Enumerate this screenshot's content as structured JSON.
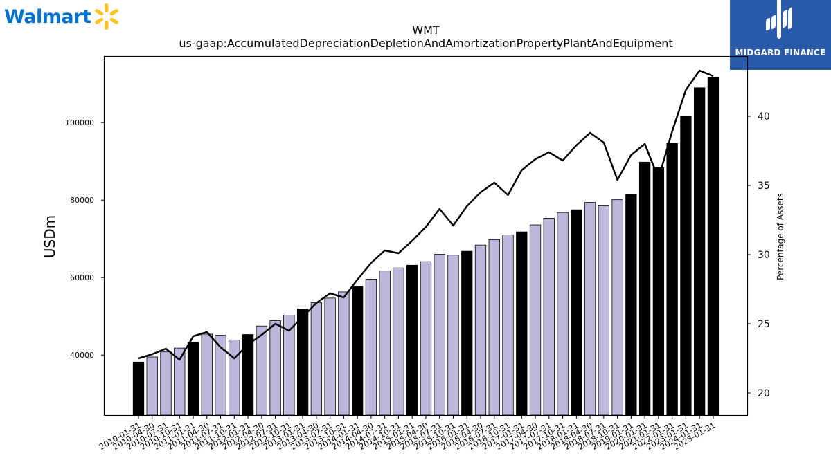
{
  "logos": {
    "left_brand": "Walmart",
    "right_brand": "MIDGARD FINANCE"
  },
  "chart_data": {
    "type": "bar",
    "title": "WMT",
    "subtitle": "us-gaap:AccumulatedDepreciationDepletionAndAmortizationPropertyPlantAndEquipment",
    "ylabel": "USDm",
    "y2label": "Percentage of Assets",
    "ylim": [
      24500,
      117000
    ],
    "y2lim": [
      18.4,
      44.3
    ],
    "yticks": [
      40000,
      60000,
      80000,
      100000
    ],
    "y2ticks": [
      20,
      25,
      30,
      35,
      40
    ],
    "grid": false,
    "colors": {
      "annual": "#000000",
      "quarterly": "#bcb8dc",
      "line": "#000000"
    },
    "categories": [
      "2010-01-31",
      "2010-04-30",
      "2010-07-31",
      "2010-10-31",
      "2011-01-31",
      "2011-04-30",
      "2011-07-31",
      "2011-10-31",
      "2012-01-31",
      "2012-04-30",
      "2012-07-31",
      "2012-10-31",
      "2013-01-31",
      "2013-04-30",
      "2013-07-31",
      "2013-10-31",
      "2014-01-31",
      "2014-04-30",
      "2014-07-31",
      "2014-10-31",
      "2015-01-31",
      "2015-04-30",
      "2015-07-31",
      "2015-10-31",
      "2016-01-31",
      "2016-04-30",
      "2016-07-31",
      "2016-10-31",
      "2017-01-31",
      "2017-04-30",
      "2017-07-31",
      "2017-10-31",
      "2018-01-31",
      "2018-04-30",
      "2018-07-31",
      "2018-10-31",
      "2019-01-31",
      "2020-01-31",
      "2021-01-31",
      "2022-01-31",
      "2023-01-31",
      "2024-01-31",
      "2025-01-31"
    ],
    "series": [
      {
        "kind": "bar",
        "axis": "left",
        "values": [
          38200,
          39500,
          40800,
          41800,
          43300,
          45400,
          45100,
          43900,
          45300,
          47500,
          48900,
          50300,
          51900,
          53500,
          54700,
          56300,
          57700,
          59600,
          61700,
          62500,
          63200,
          64100,
          66000,
          65800,
          66800,
          68400,
          69800,
          71000,
          71800,
          73600,
          75300,
          76800,
          77500,
          79400,
          78500,
          80100,
          81500,
          89800,
          88400,
          94700,
          101600,
          109000,
          111700
        ],
        "annual": [
          true,
          false,
          false,
          false,
          true,
          false,
          false,
          false,
          true,
          false,
          false,
          false,
          true,
          false,
          false,
          false,
          true,
          false,
          false,
          false,
          true,
          false,
          false,
          false,
          true,
          false,
          false,
          false,
          true,
          false,
          false,
          false,
          true,
          false,
          false,
          false,
          true,
          true,
          true,
          true,
          true,
          true,
          true
        ]
      },
      {
        "kind": "line",
        "axis": "right",
        "values": [
          22.5,
          22.8,
          23.2,
          22.4,
          24.1,
          24.4,
          23.3,
          22.5,
          23.5,
          24.2,
          25.0,
          24.5,
          25.5,
          26.5,
          27.2,
          26.9,
          28.2,
          29.4,
          30.3,
          30.1,
          31.0,
          32.0,
          33.3,
          32.1,
          33.5,
          34.5,
          35.2,
          34.3,
          36.1,
          36.9,
          37.4,
          36.8,
          37.9,
          38.8,
          38.1,
          35.4,
          37.2,
          38.0,
          35.5,
          38.9,
          41.9,
          43.3,
          42.9
        ]
      }
    ]
  }
}
